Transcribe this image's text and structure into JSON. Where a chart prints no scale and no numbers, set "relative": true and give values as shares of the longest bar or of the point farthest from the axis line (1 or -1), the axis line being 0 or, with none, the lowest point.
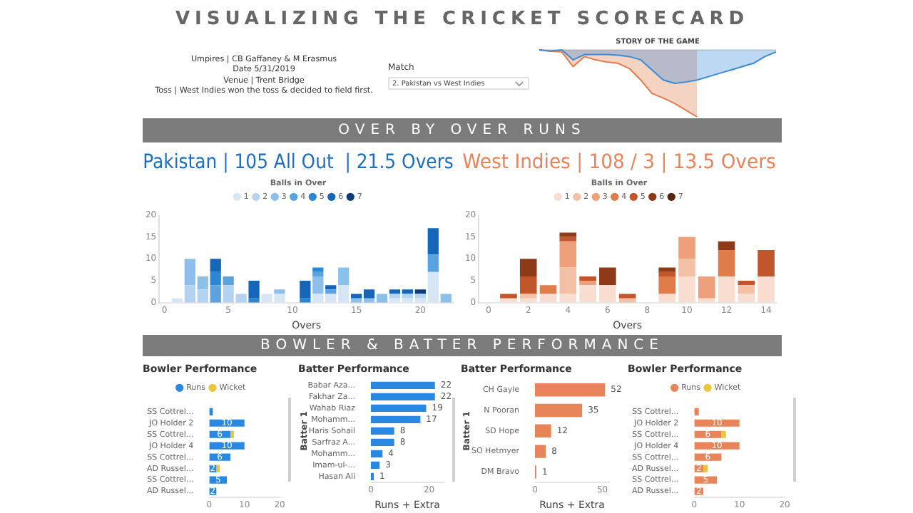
{
  "chart_data": [
    {
      "type": "other",
      "title": "VISUALIZING THE CRICKET SCORECARD",
      "annotations": [
        "Umpires | CB Gaffaney & M Erasmus",
        "Date 5/31/2019",
        "Venue | Trent Bridge",
        "Toss | West Indies won the toss & decided to field first.",
        "Match",
        "2. Pakistan vs West Indies",
        "OVER BY OVER RUNS",
        "BOWLER & BATTER PERFORMANCE"
      ]
    },
    {
      "type": "area",
      "title": "STORY OF THE GAME",
      "relative": true,
      "tick_labels": false,
      "categories": [
        null,
        null,
        null,
        null,
        null,
        null,
        null,
        null,
        null,
        null,
        null,
        null,
        null,
        null,
        null,
        null,
        null,
        null,
        null,
        null,
        null,
        null
      ],
      "series": [
        {
          "color": "#3a8ad8",
          "values": [
            0,
            -0.02,
            0,
            -0.15,
            -0.07,
            -0.07,
            -0.07,
            -0.08,
            -0.1,
            -0.15,
            -0.3,
            -0.45,
            -0.5,
            -0.48,
            -0.45,
            -0.4,
            -0.35,
            -0.3,
            -0.25,
            -0.2,
            -0.1,
            -0.03
          ]
        },
        {
          "color": "#e07b4a",
          "values": [
            0,
            -0.02,
            -0.03,
            -0.25,
            -0.1,
            -0.15,
            -0.18,
            -0.2,
            -0.28,
            -0.45,
            -0.65,
            -0.72,
            -0.8,
            -0.9,
            -1,
            null,
            null,
            null,
            null,
            null,
            null,
            null
          ]
        }
      ]
    },
    {
      "type": "bar",
      "stacked": true,
      "title": "Pakistan | 105 All Out  | 21.5 Overs",
      "xlabel": "Overs",
      "legend": "top",
      "legend_title": "Balls in Over",
      "x": [
        1,
        2,
        3,
        4,
        5,
        6,
        7,
        8,
        9,
        10,
        11,
        12,
        13,
        14,
        15,
        16,
        17,
        18,
        19,
        20,
        21,
        22
      ],
      "xlim": [
        -0.4,
        22.6
      ],
      "xticks": [
        0,
        5,
        10,
        15,
        20
      ],
      "ylim": [
        0,
        20
      ],
      "yticks": [
        0,
        5,
        10,
        15,
        20
      ],
      "series": [
        {
          "name": "1",
          "color": "#d6e6f5",
          "values": [
            1,
            0,
            0,
            0,
            0,
            0,
            0,
            2,
            2,
            0,
            0,
            2,
            2,
            4,
            0,
            0,
            0,
            1,
            1,
            1,
            7,
            0
          ]
        },
        {
          "name": "2",
          "color": "#b3d3f0",
          "values": [
            0,
            4,
            3,
            0,
            4,
            2,
            0,
            0,
            0,
            0,
            0,
            0,
            0,
            0,
            0,
            0,
            0,
            1,
            1,
            1,
            0,
            0
          ]
        },
        {
          "name": "3",
          "color": "#8cbfe9",
          "values": [
            0,
            6,
            3,
            0,
            0,
            0,
            0,
            0,
            1,
            0,
            0,
            4,
            0,
            4,
            1,
            1,
            2,
            0,
            0,
            0,
            0,
            2
          ]
        },
        {
          "name": "4",
          "color": "#5aa3e0",
          "values": [
            0,
            0,
            0,
            4,
            2,
            0,
            0,
            0,
            0,
            0,
            0,
            1,
            1,
            0,
            0,
            0,
            0,
            0,
            0,
            0,
            4,
            0
          ]
        },
        {
          "name": "5",
          "color": "#2b86d6",
          "values": [
            0,
            0,
            0,
            3,
            0,
            0,
            1,
            0,
            0,
            0,
            1,
            1,
            0,
            0,
            0,
            0,
            0,
            0,
            0,
            0,
            0,
            0
          ]
        },
        {
          "name": "6",
          "color": "#1565b8",
          "values": [
            0,
            0,
            0,
            3,
            0,
            0,
            4,
            0,
            0,
            0,
            4,
            0,
            1,
            0,
            1,
            2,
            0,
            1,
            1,
            0,
            6,
            0
          ]
        },
        {
          "name": "7",
          "color": "#0d3d7a",
          "values": [
            0,
            0,
            0,
            0,
            0,
            0,
            0,
            0,
            0,
            0,
            0,
            0,
            0,
            0,
            0,
            0,
            0,
            0,
            0,
            1,
            0,
            0
          ]
        }
      ]
    },
    {
      "type": "bar",
      "stacked": true,
      "title": "West Indies | 108 / 3 | 13.5 Overs",
      "xlabel": "Overs",
      "legend": "top",
      "legend_title": "Balls in Over",
      "x": [
        1,
        2,
        3,
        4,
        5,
        6,
        7,
        8,
        9,
        10,
        11,
        12,
        13,
        14
      ],
      "xlim": [
        -0.5,
        14.5
      ],
      "xticks": [
        0,
        2,
        4,
        6,
        8,
        10,
        12,
        14
      ],
      "ylim": [
        0,
        20
      ],
      "yticks": [
        0,
        5,
        10,
        15,
        20
      ],
      "series": [
        {
          "name": "1",
          "color": "#f8ddd0",
          "values": [
            1,
            1,
            2,
            2,
            4,
            4,
            0,
            0,
            2,
            6,
            1,
            6,
            2,
            6
          ]
        },
        {
          "name": "2",
          "color": "#f3c0a5",
          "values": [
            0,
            1,
            0,
            6,
            0,
            0,
            1,
            0,
            0,
            4,
            0,
            0,
            2,
            0
          ]
        },
        {
          "name": "3",
          "color": "#eda07a",
          "values": [
            0,
            0,
            0,
            6,
            1,
            0,
            0,
            0,
            0,
            5,
            5,
            0,
            0,
            0
          ]
        },
        {
          "name": "4",
          "color": "#e07b4a",
          "values": [
            0,
            0,
            2,
            0,
            0,
            0,
            0,
            0,
            4,
            0,
            0,
            6,
            0,
            0
          ]
        },
        {
          "name": "5",
          "color": "#c2562a",
          "values": [
            1,
            4,
            0,
            1,
            1,
            0,
            1,
            0,
            1,
            0,
            0,
            0,
            1,
            6
          ]
        },
        {
          "name": "6",
          "color": "#8e3a18",
          "values": [
            0,
            4,
            0,
            1,
            0,
            4,
            0,
            0,
            1,
            0,
            0,
            2,
            0,
            0
          ]
        },
        {
          "name": "7",
          "color": "#5a240f",
          "values": [
            0,
            0,
            0,
            0,
            0,
            0,
            0,
            0,
            0,
            0,
            0,
            0,
            0,
            0
          ]
        }
      ]
    },
    {
      "type": "bar",
      "orientation": "horizontal",
      "stacked": true,
      "title": "Bowler Performance",
      "legend": "top",
      "categories": [
        "SS Cottrel...",
        "JO Holder 2",
        "SS Cottrel...",
        "JO Holder 4",
        "SS Cottrel...",
        "AD Russel...",
        "SS Cottrel...",
        "AD Russel..."
      ],
      "xlim": [
        0,
        20
      ],
      "xticks": [
        0,
        10,
        20
      ],
      "series": [
        {
          "name": "Runs",
          "color": "#2b88e0",
          "values": [
            1,
            10,
            6,
            10,
            6,
            2,
            5,
            2
          ],
          "value_labels": [
            null,
            "10",
            "6",
            "10",
            "6",
            "2",
            "5",
            "2"
          ]
        },
        {
          "name": "Wicket",
          "color": "#e8c53a",
          "values": [
            0,
            0,
            1,
            0,
            0,
            1,
            0,
            0
          ]
        }
      ]
    },
    {
      "type": "bar",
      "orientation": "horizontal",
      "title": "Batter Performance",
      "ylabel": "Batter 1",
      "xlabel": "Runs + Extra",
      "data_labels": true,
      "categories": [
        "Babar Aza...",
        "Fakhar Za...",
        "Wahab Riaz",
        "Mohamm...",
        "Haris Sohail",
        "Sarfraz A...",
        "Mohamm...",
        "Imam-ul-...",
        "Hasan Ali"
      ],
      "xlim": [
        0,
        25
      ],
      "xticks": [
        0,
        20
      ],
      "series": [
        {
          "color": "#2b88e0",
          "values": [
            22,
            22,
            19,
            17,
            8,
            8,
            4,
            3,
            1
          ]
        }
      ]
    },
    {
      "type": "bar",
      "orientation": "horizontal",
      "title": "Batter Performance",
      "ylabel": "Batter 1",
      "xlabel": "Runs + Extra",
      "data_labels": true,
      "categories": [
        "CH Gayle",
        "N Pooran",
        "SD Hope",
        "SO Hetmyer",
        "DM Bravo"
      ],
      "xlim": [
        0,
        55
      ],
      "xticks": [
        0,
        50
      ],
      "series": [
        {
          "color": "#e8845a",
          "values": [
            52,
            35,
            12,
            8,
            1
          ]
        }
      ]
    },
    {
      "type": "bar",
      "orientation": "horizontal",
      "stacked": true,
      "title": "Bowler Performance",
      "legend": "top",
      "categories": [
        "SS Cottrel...",
        "JO Holder 2",
        "SS Cottrel...",
        "JO Holder 4",
        "SS Cottrel...",
        "AD Russel...",
        "SS Cottrel...",
        "AD Russel..."
      ],
      "xlim": [
        0,
        20
      ],
      "xticks": [
        0,
        10,
        20
      ],
      "series": [
        {
          "name": "Runs",
          "color": "#e8845a",
          "values": [
            1,
            10,
            6,
            10,
            6,
            2,
            5,
            2
          ],
          "value_labels": [
            null,
            "10",
            "6",
            "10",
            "6",
            "2",
            "5",
            "2"
          ]
        },
        {
          "name": "Wicket",
          "color": "#e8c53a",
          "values": [
            0,
            0,
            1,
            0,
            0,
            1,
            0,
            0
          ]
        }
      ]
    }
  ]
}
